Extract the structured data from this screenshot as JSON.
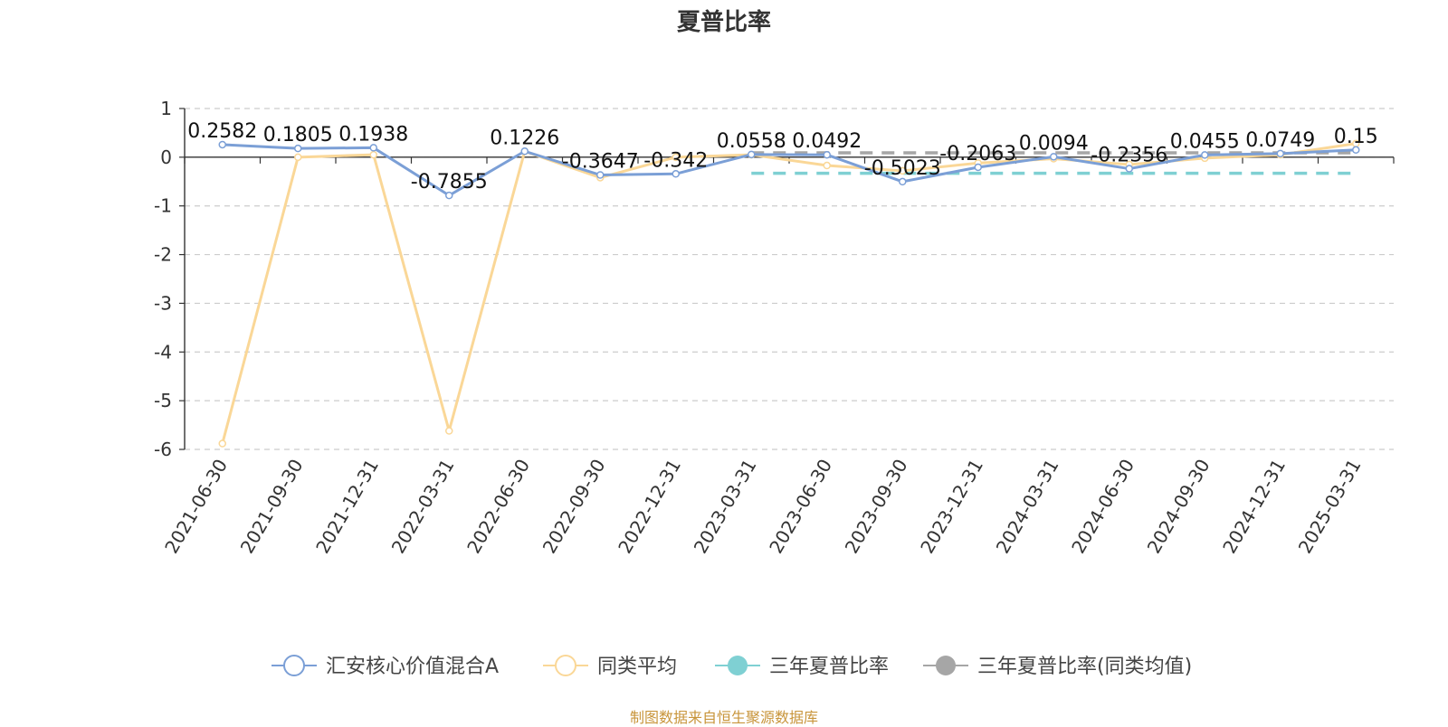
{
  "chart_data": {
    "type": "line",
    "title": "夏普比率",
    "categories": [
      "2021-06-30",
      "2021-09-30",
      "2021-12-31",
      "2022-03-31",
      "2022-06-30",
      "2022-09-30",
      "2022-12-31",
      "2023-03-31",
      "2023-06-30",
      "2023-09-30",
      "2023-12-31",
      "2024-03-31",
      "2024-06-30",
      "2024-09-30",
      "2024-12-31",
      "2025-03-31"
    ],
    "y_ticks": [
      "1",
      "0",
      "-1",
      "-2",
      "-3",
      "-4",
      "-5",
      "-6"
    ],
    "ylim": [
      -6,
      1
    ],
    "grid": true,
    "legend_position": "bottom",
    "series": [
      {
        "name": "汇安核心价值混合A",
        "color": "#7b9fd6",
        "values": [
          0.2582,
          0.1805,
          0.1938,
          -0.7855,
          0.1226,
          -0.3647,
          -0.342,
          0.0558,
          0.0492,
          -0.5023,
          -0.2063,
          0.0094,
          -0.2356,
          0.0455,
          0.0749,
          0.15
        ],
        "labels": [
          "0.2582",
          "0.1805",
          "0.1938",
          "-0.7855",
          "0.1226",
          "-0.3647",
          "-0.342",
          "0.0558",
          "0.0492",
          "-0.5023",
          "-0.2063",
          "0.0094",
          "-0.2356",
          "0.0455",
          "0.0749",
          "0.15"
        ]
      },
      {
        "name": "同类平均",
        "color": "#fad797",
        "values": [
          -5.88,
          0.0,
          0.05,
          -5.62,
          0.12,
          -0.42,
          0.0,
          0.05,
          -0.17,
          -0.28,
          -0.12,
          -0.03,
          -0.15,
          -0.02,
          0.05,
          0.28
        ]
      }
    ],
    "reference_lines": [
      {
        "name": "三年夏普比率",
        "color": "#7fd0d3",
        "value": -0.33,
        "from": "2023-03-31",
        "to": "2025-03-31"
      },
      {
        "name": "三年夏普比率(同类均值)",
        "color": "#a6a6a6",
        "value": 0.09,
        "from": "2023-03-31",
        "to": "2025-03-31"
      }
    ],
    "legend": [
      {
        "name": "汇安核心价值混合A",
        "color": "#7b9fd6",
        "marker": "hollow-circle"
      },
      {
        "name": "同类平均",
        "color": "#fad797",
        "marker": "hollow-circle"
      },
      {
        "name": "三年夏普比率",
        "color": "#7fd0d3",
        "marker": "filled-circle"
      },
      {
        "name": "三年夏普比率(同类均值)",
        "color": "#a6a6a6",
        "marker": "filled-circle"
      }
    ]
  },
  "footer": "制图数据来自恒生聚源数据库"
}
